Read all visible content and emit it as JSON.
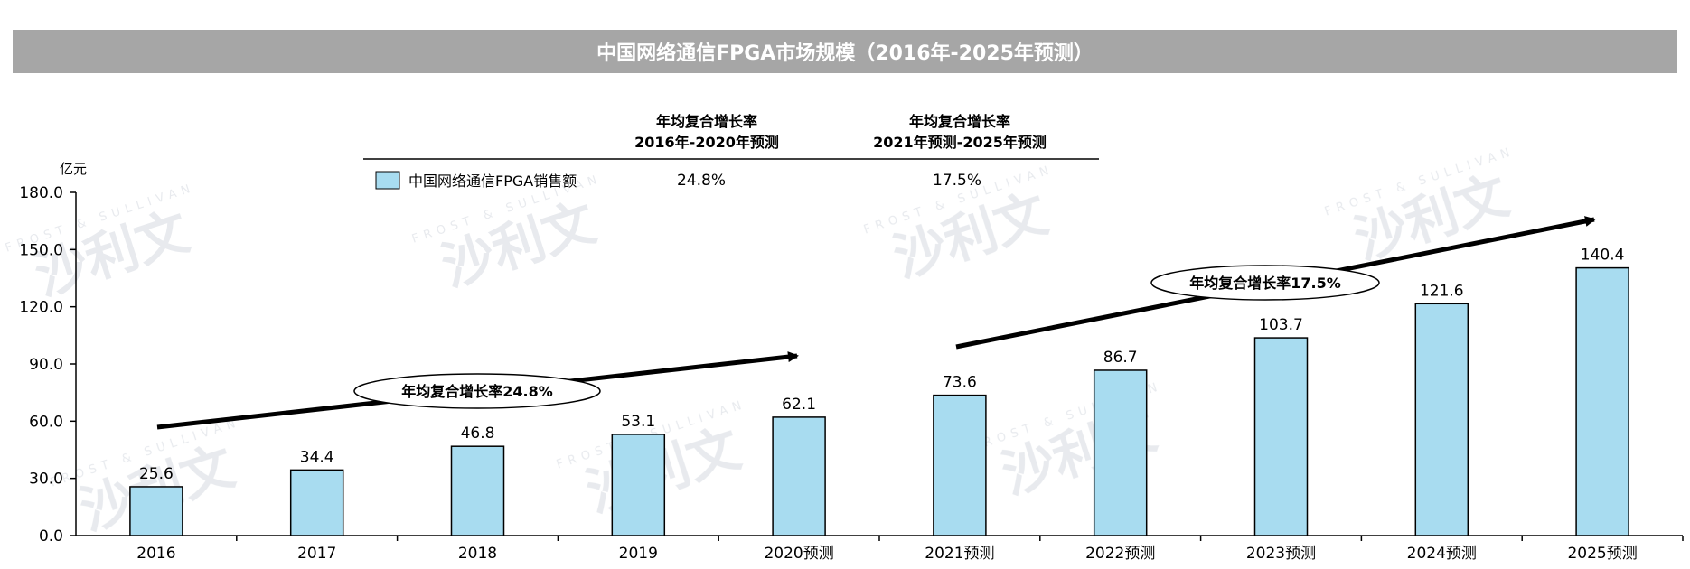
{
  "chart_data": {
    "type": "bar",
    "title": "中国网络通信FPGA市场规模（2016年-2025年预测）",
    "ylabel": "亿元",
    "ylim": [
      0,
      180
    ],
    "yticks": [
      "0.0",
      "30.0",
      "60.0",
      "90.0",
      "120.0",
      "150.0",
      "180.0"
    ],
    "categories": [
      "2016",
      "2017",
      "2018",
      "2019",
      "2020预测",
      "2021预测",
      "2022预测",
      "2023预测",
      "2024预测",
      "2025预测"
    ],
    "series": [
      {
        "name": "中国网络通信FPGA销售额",
        "values": [
          25.6,
          34.4,
          46.8,
          53.1,
          62.1,
          73.6,
          86.7,
          103.7,
          121.6,
          140.4
        ]
      }
    ],
    "value_labels": [
      "25.6",
      "34.4",
      "46.8",
      "53.1",
      "62.1",
      "73.6",
      "86.7",
      "103.7",
      "121.6",
      "140.4"
    ],
    "cagr_table": {
      "header1_line1": "年均复合增长率",
      "header1_line2": "2016年-2020年预测",
      "header2_line1": "年均复合增长率",
      "header2_line2": "2021年预测-2025年预测",
      "value1": "24.8%",
      "value2": "17.5%"
    },
    "annotations": [
      "年均复合增长率24.8%",
      "年均复合增长率17.5%"
    ],
    "bar_color": "#a8dcf0",
    "grid": false,
    "legend": "top-left"
  },
  "watermark": {
    "brand": "FROST & SULLIVAN",
    "chars": "沙利文"
  }
}
